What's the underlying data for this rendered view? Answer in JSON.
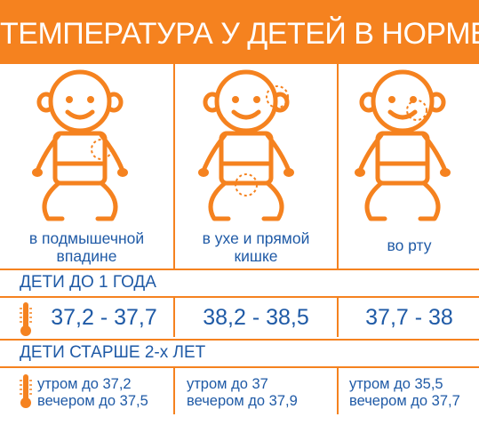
{
  "title": "ТЕМПЕРАТУРА У ДЕТЕЙ В НОРМЕ",
  "colors": {
    "accent": "#f5821f",
    "text": "#1f5aa6",
    "background": "#ffffff"
  },
  "locations": [
    {
      "line1": "в подмышечной",
      "line2": "впадине"
    },
    {
      "line1": "в ухе и прямой",
      "line2": "кишке"
    },
    {
      "line1": "во рту",
      "line2": ""
    }
  ],
  "under_one": {
    "label": "ДЕТИ ДО 1 ГОДА",
    "ranges": [
      "37,2 - 37,7",
      "38,2 - 38,5",
      "37,7 - 38"
    ]
  },
  "over_two": {
    "label": "ДЕТИ СТАРШЕ 2-х ЛЕТ",
    "values": [
      {
        "morning": "утром до 37,2",
        "evening": "вечером до 37,5"
      },
      {
        "morning": "утром до 37",
        "evening": "вечером до 37,9"
      },
      {
        "morning": "утром до 35,5",
        "evening": "вечером до 37,7"
      }
    ]
  },
  "icons": [
    "baby-armpit-icon",
    "baby-ear-rectal-icon",
    "baby-mouth-icon",
    "thermometer-icon"
  ]
}
